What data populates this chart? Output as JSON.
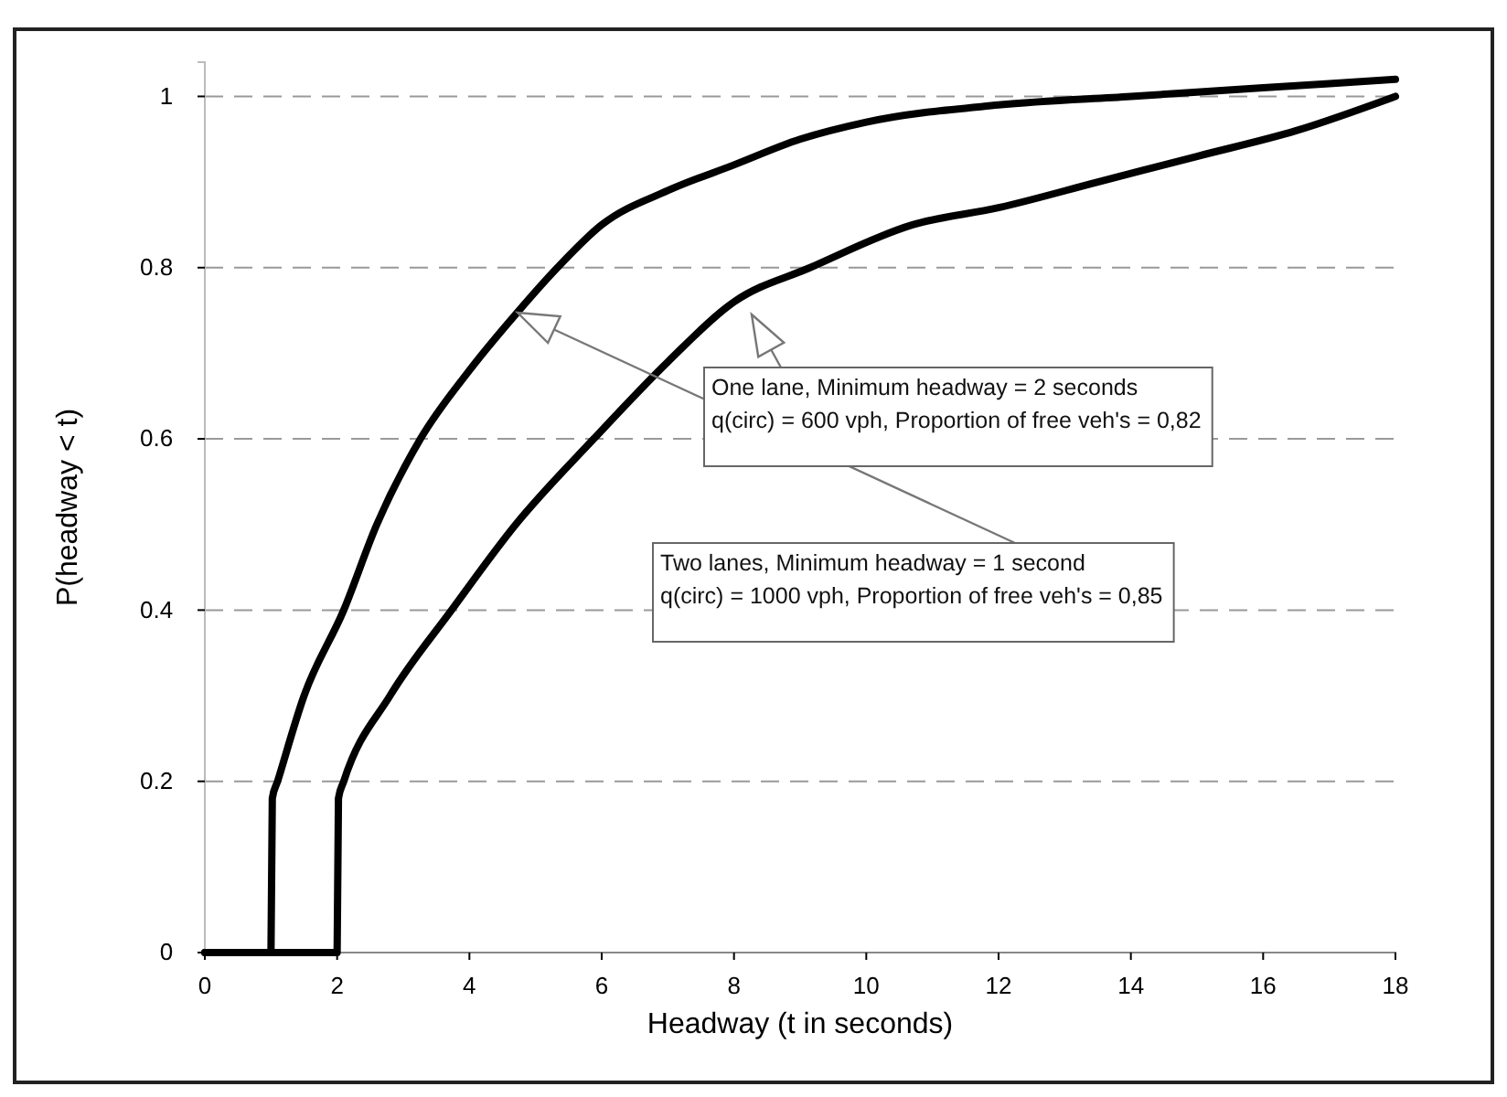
{
  "chart_data": {
    "type": "line",
    "xlabel": "Headway (t in seconds)",
    "ylabel": "P(headway < t)",
    "xlim": [
      0,
      18
    ],
    "xticks": [
      0,
      2,
      4,
      6,
      8,
      10,
      12,
      14,
      16,
      18
    ],
    "ylim": [
      0,
      1.04
    ],
    "yticks": [
      0,
      0.2,
      0.4,
      0.6,
      0.8,
      1
    ],
    "grid": "y",
    "line_style": "solid",
    "marker": "none",
    "series": [
      {
        "color": "#000000",
        "x": [
          0,
          1,
          1.02,
          1.1,
          1.5,
          2.1,
          2.6,
          3.26,
          4,
          4.75,
          5.33,
          6,
          7,
          8,
          9,
          10,
          12,
          14,
          16,
          18
        ],
        "values": [
          0,
          0,
          0.18,
          0.2,
          0.3,
          0.4,
          0.5,
          0.6,
          0.68,
          0.75,
          0.8,
          0.85,
          0.89,
          0.92,
          0.95,
          0.97,
          0.99,
          1.0,
          1.01,
          1.02
        ]
      },
      {
        "color": "#000000",
        "x": [
          0,
          2,
          2.02,
          2.1,
          2.8,
          3.73,
          4.7,
          5.88,
          7,
          8,
          9.15,
          10.7,
          12,
          13.5,
          15,
          16.5,
          18
        ],
        "values": [
          0,
          0,
          0.18,
          0.2,
          0.3,
          0.4,
          0.5,
          0.6,
          0.69,
          0.76,
          0.8,
          0.85,
          0.87,
          0.9,
          0.93,
          0.96,
          1.0
        ]
      }
    ],
    "annotations": [
      "One lane,  Minimum headway = 2 seconds\nq(circ) = 600 vph,  Proportion of free veh's = 0,82",
      "Two lanes,  Minimum headway = 1 second\nq(circ) = 1000 vph,  Proportion of free veh's = 0,85"
    ]
  }
}
